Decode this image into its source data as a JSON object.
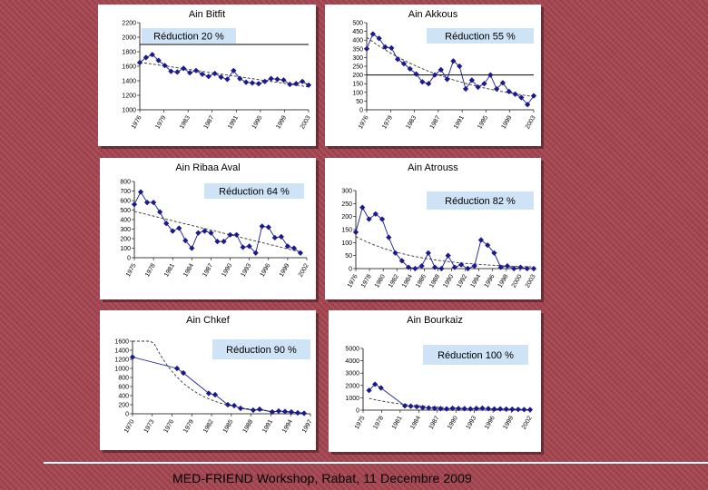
{
  "footer": {
    "text": "MED-FRIEND Workshop, Rabat, 11 Decembre 2009"
  },
  "colors": {
    "background": "#a5434f",
    "marker": "#1a1a8c",
    "line": "#1a1a8c",
    "label_box": "#cfe3f6"
  },
  "chart_data": [
    {
      "type": "line",
      "title": "Ain Bitfit",
      "annotation": "Réduction 20 %",
      "ylim": [
        1000,
        2200
      ],
      "yticks": [
        1000,
        1200,
        1400,
        1600,
        1800,
        2000,
        2200
      ],
      "xlim": [
        1976,
        2003
      ],
      "xticks": [
        "1976",
        "1979",
        "1983",
        "1987",
        "1991",
        "1995",
        "1999",
        "2003"
      ],
      "reference_line": 1900,
      "trend": "linear",
      "x": [
        1976,
        1977,
        1978,
        1979,
        1980,
        1981,
        1982,
        1983,
        1984,
        1985,
        1986,
        1987,
        1988,
        1989,
        1990,
        1991,
        1992,
        1993,
        1994,
        1995,
        1996,
        1997,
        1998,
        1999,
        2000,
        2001,
        2002,
        2003
      ],
      "y": [
        1650,
        1720,
        1760,
        1680,
        1610,
        1530,
        1520,
        1570,
        1510,
        1540,
        1490,
        1460,
        1500,
        1450,
        1420,
        1540,
        1430,
        1380,
        1370,
        1360,
        1390,
        1430,
        1420,
        1410,
        1350,
        1360,
        1390,
        1340
      ]
    },
    {
      "type": "line",
      "title": "Ain Akkous",
      "annotation": "Réduction 55 %",
      "ylim": [
        0,
        500
      ],
      "yticks": [
        0,
        50,
        100,
        150,
        200,
        250,
        300,
        350,
        400,
        450,
        500
      ],
      "xlim": [
        1976,
        2003
      ],
      "xticks": [
        "1976",
        "1979",
        "1983",
        "1987",
        "1991",
        "1995",
        "1999",
        "2003"
      ],
      "reference_line": 200,
      "trend": "curve",
      "x": [
        1976,
        1977,
        1978,
        1979,
        1980,
        1981,
        1982,
        1983,
        1984,
        1985,
        1986,
        1987,
        1988,
        1989,
        1990,
        1991,
        1992,
        1993,
        1994,
        1995,
        1996,
        1997,
        1998,
        1999,
        2000,
        2001,
        2002,
        2003
      ],
      "y": [
        350,
        435,
        410,
        360,
        355,
        290,
        265,
        235,
        205,
        160,
        150,
        200,
        230,
        175,
        280,
        250,
        120,
        170,
        130,
        150,
        200,
        120,
        155,
        105,
        90,
        70,
        30,
        80
      ]
    },
    {
      "type": "line",
      "title": "Ain Ribaa Aval",
      "annotation": "Réduction 64 %",
      "ylim": [
        0,
        800
      ],
      "yticks": [
        0,
        100,
        200,
        300,
        400,
        500,
        600,
        700,
        800
      ],
      "xlim": [
        1976,
        2003
      ],
      "xticks": [
        "1975",
        "1978",
        "1981",
        "1984",
        "1987",
        "1990",
        "1993",
        "1996",
        "1999",
        "2002"
      ],
      "trend": "linear",
      "x": [
        1976,
        1977,
        1978,
        1979,
        1980,
        1981,
        1982,
        1983,
        1984,
        1985,
        1986,
        1987,
        1988,
        1989,
        1990,
        1991,
        1992,
        1993,
        1994,
        1995,
        1996,
        1997,
        1998,
        1999,
        2000,
        2001,
        2002
      ],
      "y": [
        560,
        690,
        580,
        580,
        480,
        360,
        280,
        310,
        180,
        100,
        260,
        280,
        260,
        170,
        170,
        240,
        240,
        110,
        120,
        50,
        330,
        320,
        210,
        220,
        120,
        100,
        50
      ]
    },
    {
      "type": "line",
      "title": "Ain Atrouss",
      "annotation": "Réduction 82 %",
      "ylim": [
        0,
        300
      ],
      "yticks": [
        0,
        50,
        100,
        150,
        200,
        250,
        300
      ],
      "xlim": [
        1976,
        2003
      ],
      "xticks": [
        "1976",
        "1978",
        "1980",
        "1982",
        "1984",
        "1986",
        "1988",
        "1990",
        "1992",
        "1994",
        "1996",
        "1998",
        "2000",
        "2003"
      ],
      "trend": "curve",
      "x": [
        1976,
        1977,
        1978,
        1979,
        1980,
        1981,
        1982,
        1983,
        1984,
        1985,
        1986,
        1987,
        1988,
        1989,
        1990,
        1991,
        1992,
        1993,
        1994,
        1995,
        1996,
        1997,
        1998,
        1999,
        2000,
        2001,
        2002,
        2003
      ],
      "y": [
        140,
        235,
        190,
        210,
        190,
        120,
        60,
        30,
        5,
        0,
        10,
        60,
        5,
        0,
        50,
        5,
        15,
        0,
        10,
        110,
        90,
        60,
        5,
        10,
        0,
        5,
        0,
        0
      ]
    },
    {
      "type": "line",
      "title": "Ain Chkef",
      "annotation": "Réduction 90 %",
      "ylim": [
        0,
        1600
      ],
      "yticks": [
        0,
        200,
        400,
        600,
        800,
        1000,
        1200,
        1400,
        1600
      ],
      "xlim": [
        1970,
        1998
      ],
      "xticks": [
        "1970",
        "1973",
        "1976",
        "1979",
        "1982",
        "1985",
        "1988",
        "1991",
        "1994",
        "1997"
      ],
      "trend": "curve",
      "x": [
        1970,
        1977,
        1978,
        1982,
        1983,
        1985,
        1986,
        1987,
        1989,
        1990,
        1992,
        1993,
        1994,
        1995,
        1996,
        1997
      ],
      "y": [
        1250,
        1000,
        900,
        450,
        420,
        200,
        180,
        120,
        80,
        100,
        40,
        60,
        50,
        40,
        20,
        10
      ]
    },
    {
      "type": "line",
      "title": "Ain Bourkaiz",
      "annotation": "Réduction 100 %",
      "ylim": [
        0,
        5000
      ],
      "yticks": [
        0,
        1000,
        2000,
        3000,
        4000,
        5000
      ],
      "xlim": [
        1975,
        2003
      ],
      "xticks": [
        "1975",
        "1978",
        "1981",
        "1984",
        "1987",
        "1990",
        "1993",
        "1996",
        "1999",
        "2002"
      ],
      "trend": "curve",
      "x": [
        1976,
        1977,
        1978,
        1982,
        1983,
        1984,
        1985,
        1986,
        1987,
        1988,
        1989,
        1990,
        1991,
        1992,
        1993,
        1994,
        1995,
        1996,
        1997,
        1998,
        1999,
        2000,
        2001,
        2002,
        2003
      ],
      "y": [
        1600,
        2100,
        1800,
        350,
        320,
        280,
        200,
        180,
        150,
        120,
        100,
        150,
        130,
        120,
        100,
        140,
        160,
        120,
        90,
        100,
        80,
        70,
        60,
        50,
        40
      ]
    }
  ]
}
